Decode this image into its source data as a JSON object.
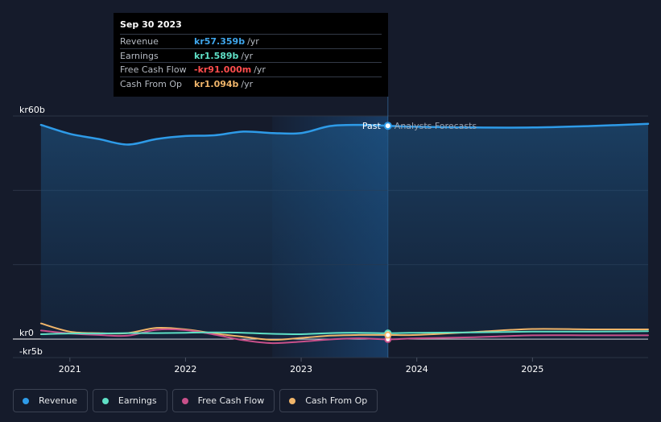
{
  "tooltip": {
    "date": "Sep 30 2023",
    "rows": [
      {
        "label": "Revenue",
        "value": "kr57.359b",
        "unit": "/yr",
        "color": "#3fa6ec"
      },
      {
        "label": "Earnings",
        "value": "kr1.589b",
        "unit": "/yr",
        "color": "#5fe0c6"
      },
      {
        "label": "Free Cash Flow",
        "value": "-kr91.000m",
        "unit": "/yr",
        "color": "#ff4d4d"
      },
      {
        "label": "Cash From Op",
        "value": "kr1.094b",
        "unit": "/yr",
        "color": "#f0b56a"
      }
    ]
  },
  "legend": [
    {
      "label": "Revenue",
      "color": "#2e9be8"
    },
    {
      "label": "Earnings",
      "color": "#5fe0c6"
    },
    {
      "label": "Free Cash Flow",
      "color": "#c8508a"
    },
    {
      "label": "Cash From Op",
      "color": "#f0b56a"
    }
  ],
  "chart_data": {
    "type": "line",
    "title": "",
    "xlabel": "",
    "ylabel": "",
    "unit": "SEK billions",
    "x_ticks": [
      2021,
      2022,
      2023,
      2024,
      2025
    ],
    "xlim": [
      2020.73,
      2026.0
    ],
    "ylim": [
      -5,
      62.5
    ],
    "y_tick_labels": [
      {
        "value": 60,
        "label": "kr60b"
      },
      {
        "value": 0,
        "label": "kr0"
      },
      {
        "value": -5,
        "label": "-kr5b"
      }
    ],
    "divider_x": 2023.75,
    "divider_labels": {
      "past": "Past",
      "forecast": "Analysts Forecasts"
    },
    "highlight_range": [
      2022.75,
      2023.75
    ],
    "series": [
      {
        "name": "Revenue",
        "color": "#2e9be8",
        "fill": true,
        "points": [
          [
            2020.75,
            57.6
          ],
          [
            2021.0,
            55.2
          ],
          [
            2021.25,
            53.8
          ],
          [
            2021.5,
            52.3
          ],
          [
            2021.75,
            53.8
          ],
          [
            2022.0,
            54.6
          ],
          [
            2022.25,
            54.8
          ],
          [
            2022.5,
            55.8
          ],
          [
            2022.75,
            55.4
          ],
          [
            2023.0,
            55.4
          ],
          [
            2023.25,
            57.3
          ],
          [
            2023.5,
            57.6
          ],
          [
            2023.75,
            57.36
          ],
          [
            2024.0,
            57.1
          ],
          [
            2024.5,
            56.9
          ],
          [
            2025.0,
            56.9
          ],
          [
            2025.5,
            57.3
          ],
          [
            2026.0,
            57.9
          ]
        ]
      },
      {
        "name": "Earnings",
        "color": "#5fe0c6",
        "points": [
          [
            2020.75,
            1.3
          ],
          [
            2021.0,
            1.5
          ],
          [
            2021.25,
            1.5
          ],
          [
            2021.5,
            1.6
          ],
          [
            2021.75,
            1.6
          ],
          [
            2022.0,
            1.7
          ],
          [
            2022.25,
            1.8
          ],
          [
            2022.5,
            1.7
          ],
          [
            2022.75,
            1.4
          ],
          [
            2023.0,
            1.3
          ],
          [
            2023.25,
            1.6
          ],
          [
            2023.5,
            1.7
          ],
          [
            2023.75,
            1.589
          ],
          [
            2024.0,
            1.7
          ],
          [
            2024.5,
            1.8
          ],
          [
            2025.0,
            2.0
          ],
          [
            2025.5,
            2.0
          ],
          [
            2026.0,
            2.1
          ]
        ]
      },
      {
        "name": "Free Cash Flow",
        "color": "#c8508a",
        "points": [
          [
            2020.75,
            2.3
          ],
          [
            2021.0,
            1.5
          ],
          [
            2021.25,
            1.1
          ],
          [
            2021.5,
            0.9
          ],
          [
            2021.75,
            2.5
          ],
          [
            2022.0,
            2.4
          ],
          [
            2022.25,
            1.2
          ],
          [
            2022.5,
            -0.3
          ],
          [
            2022.75,
            -1.1
          ],
          [
            2023.0,
            -0.7
          ],
          [
            2023.25,
            -0.1
          ],
          [
            2023.5,
            0.2
          ],
          [
            2023.75,
            -0.091
          ],
          [
            2024.0,
            0.2
          ],
          [
            2024.5,
            0.5
          ],
          [
            2025.0,
            1.0
          ],
          [
            2025.5,
            1.0
          ],
          [
            2026.0,
            1.0
          ]
        ]
      },
      {
        "name": "Cash From Op",
        "color": "#f0b56a",
        "points": [
          [
            2020.75,
            4.2
          ],
          [
            2021.0,
            2.0
          ],
          [
            2021.25,
            1.6
          ],
          [
            2021.5,
            1.6
          ],
          [
            2021.75,
            3.0
          ],
          [
            2022.0,
            2.6
          ],
          [
            2022.25,
            1.5
          ],
          [
            2022.5,
            0.6
          ],
          [
            2022.75,
            -0.2
          ],
          [
            2023.0,
            0.3
          ],
          [
            2023.25,
            0.9
          ],
          [
            2023.5,
            1.1
          ],
          [
            2023.75,
            1.094
          ],
          [
            2024.0,
            1.1
          ],
          [
            2024.5,
            1.9
          ],
          [
            2025.0,
            2.7
          ],
          [
            2025.5,
            2.6
          ],
          [
            2026.0,
            2.6
          ]
        ]
      }
    ]
  }
}
